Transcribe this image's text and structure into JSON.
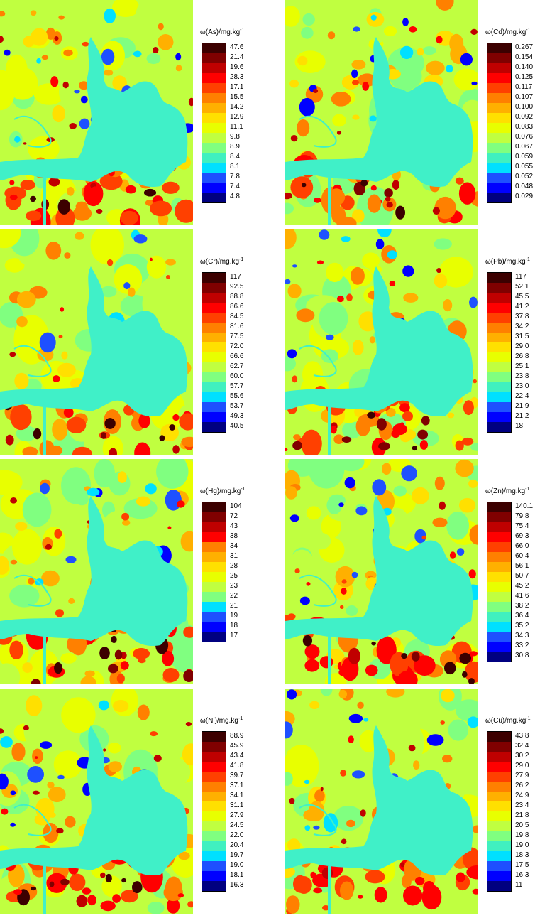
{
  "colors": [
    "#000080",
    "#0000ff",
    "#1e50ff",
    "#00e0ff",
    "#40f0c0",
    "#80ff80",
    "#c0ff40",
    "#e8ff00",
    "#ffe000",
    "#ffb000",
    "#ff8000",
    "#ff4000",
    "#ff0000",
    "#c00000",
    "#800000",
    "#3c0000"
  ],
  "background_color": "#40f0c8",
  "panels": [
    {
      "element": "As",
      "title_prefix": "ω(As)/mg.kg",
      "title_exp": "-1",
      "ticks": [
        "47.6",
        "21.4",
        "19.6",
        "28.3",
        "17.1",
        "15.5",
        "14.2",
        "12.9",
        "11.1",
        "9.8",
        "8.9",
        "8.4",
        "8.1",
        "7.8",
        "7.4",
        "4.8"
      ]
    },
    {
      "element": "Cd",
      "title_prefix": "ω(Cd)/mg.kg",
      "title_exp": "-1",
      "ticks": [
        "0.267",
        "0.154",
        "0.140",
        "0.125",
        "0.117",
        "0.107",
        "0.100",
        "0.092",
        "0.083",
        "0.076",
        "0.067",
        "0.059",
        "0.055",
        "0.052",
        "0.048",
        "0.029"
      ]
    },
    {
      "element": "Cr",
      "title_prefix": "ω(Cr)/mg.kg",
      "title_exp": "-1",
      "ticks": [
        "117",
        "92.5",
        "88.8",
        "86.6",
        "84.5",
        "81.6",
        "77.5",
        "72.0",
        "66.6",
        "62.7",
        "60.0",
        "57.7",
        "55.6",
        "53.7",
        "49.3",
        "40.5"
      ]
    },
    {
      "element": "Pb",
      "title_prefix": "ω(Pb)/mg.kg",
      "title_exp": "-1",
      "ticks": [
        "117",
        "52.1",
        "45.5",
        "41.2",
        "37.8",
        "34.2",
        "31.5",
        "29.0",
        "26.8",
        "25.1",
        "23.8",
        "23.0",
        "22.4",
        "21.9",
        "21.2",
        "18"
      ]
    },
    {
      "element": "Hg",
      "title_prefix": "ω(Hg)/mg.kg",
      "title_exp": "-1",
      "ticks": [
        "104",
        "72",
        "43",
        "38",
        "34",
        "31",
        "28",
        "25",
        "23",
        "22",
        "21",
        "19",
        "18",
        "17"
      ]
    },
    {
      "element": "Zn",
      "title_prefix": "ω(Zn)/mg.kg",
      "title_exp": "-1",
      "ticks": [
        "140.1",
        "79.8",
        "75.4",
        "69.3",
        "66.0",
        "60.4",
        "56.1",
        "50.7",
        "45.2",
        "41.6",
        "38.2",
        "36.4",
        "35.2",
        "34.3",
        "33.2",
        "30.8"
      ]
    },
    {
      "element": "Ni",
      "title_prefix": "ω(Ni)/mg.kg",
      "title_exp": "-1",
      "ticks": [
        "88.9",
        "45.9",
        "43.4",
        "41.8",
        "39.7",
        "37.1",
        "34.1",
        "31.1",
        "27.9",
        "24.5",
        "22.0",
        "20.4",
        "19.7",
        "19.0",
        "18.1",
        "16.3"
      ]
    },
    {
      "element": "Cu",
      "title_prefix": "ω(Cu)/mg.kg",
      "title_exp": "-1",
      "ticks": [
        "43.8",
        "32.4",
        "30.2",
        "29.0",
        "27.9",
        "26.2",
        "24.9",
        "23.4",
        "21.8",
        "20.5",
        "19.8",
        "19.0",
        "18.3",
        "17.5",
        "16.3",
        "11"
      ]
    }
  ]
}
